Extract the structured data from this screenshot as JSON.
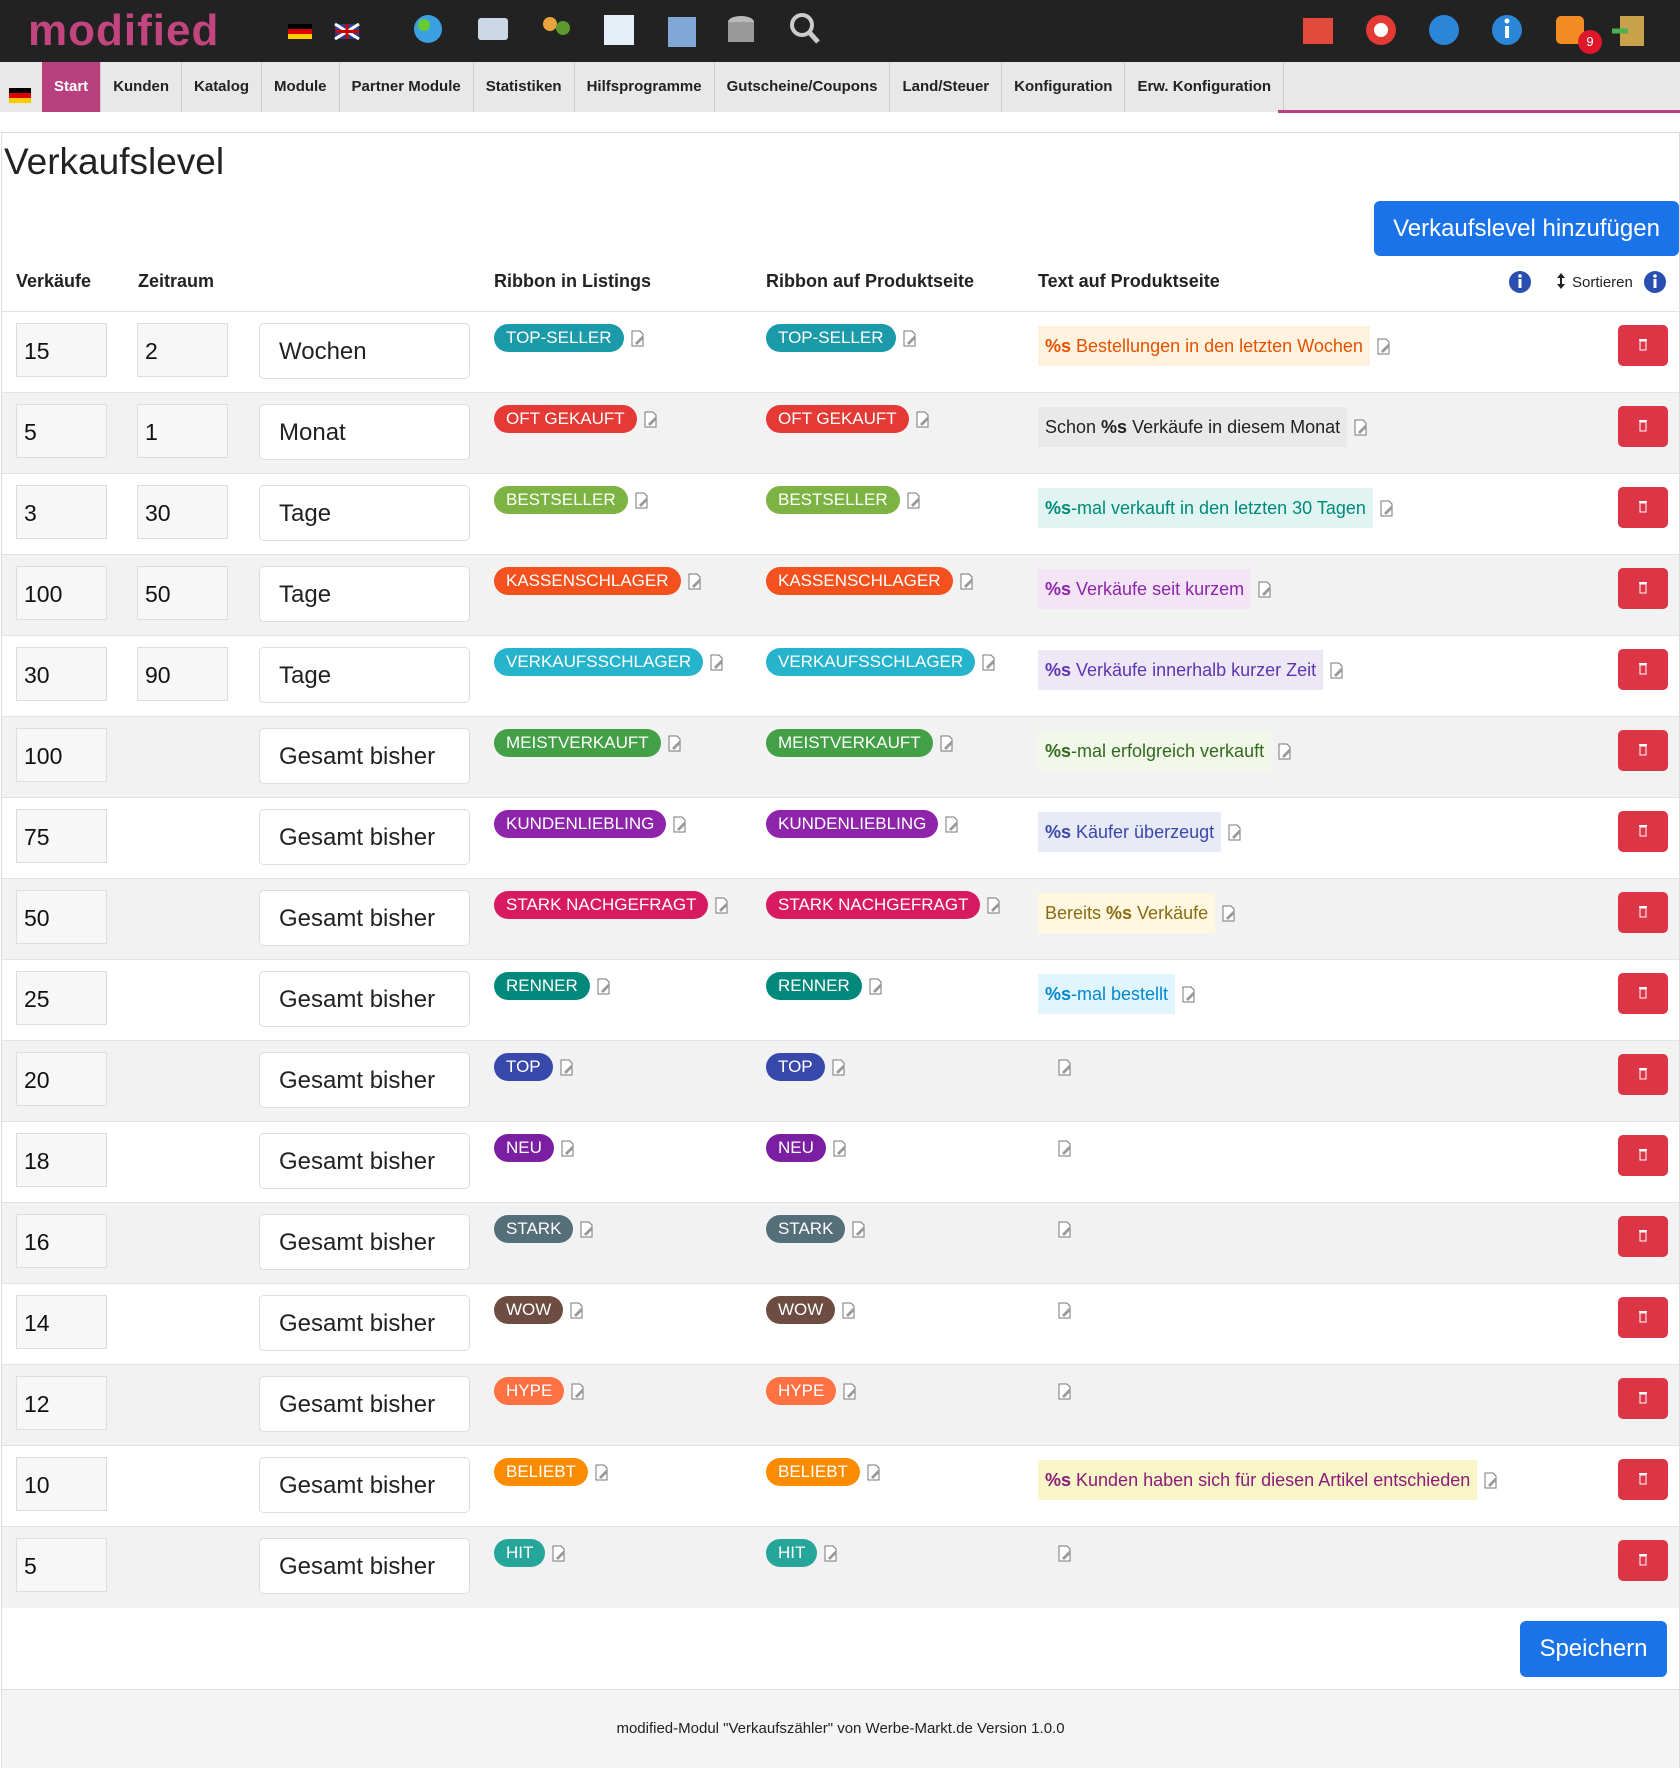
{
  "header": {
    "logo": "modified",
    "notification_count": 9
  },
  "nav": [
    "Start",
    "Kunden",
    "Katalog",
    "Module",
    "Partner Module",
    "Statistiken",
    "Hilfsprogramme",
    "Gutscheine/Coupons",
    "Land/Steuer",
    "Konfiguration",
    "Erw. Konfiguration"
  ],
  "page": {
    "title": "Verkaufslevel",
    "add_button": "Verkaufslevel hinzufügen",
    "save_button": "Speichern",
    "footer": "modified-Modul \"Verkaufszähler\" von Werbe-Markt.de Version 1.0.0"
  },
  "table": {
    "headers": {
      "sales": "Verkäufe",
      "period": "Zeitraum",
      "ribbon_listings": "Ribbon in Listings",
      "ribbon_product": "Ribbon auf Produktseite",
      "text": "Text auf Produktseite",
      "sort": "Sortieren"
    },
    "rows": [
      {
        "sales": 15,
        "period": 2,
        "unit": "Wochen",
        "ribbon": "TOP-SELLER",
        "ribbon_color": "#1b9aaa",
        "text": {
          "bold": "%s",
          "after": " Bestellungen in den letzten Wochen"
        },
        "text_color": "#e65100",
        "text_bg": "#fff3e0"
      },
      {
        "sales": 5,
        "period": 1,
        "unit": "Monat",
        "ribbon": "OFT GEKAUFT",
        "ribbon_color": "#e53935",
        "text": {
          "before": "Schon ",
          "bold": "%s",
          "after": " Verkäufe in diesem Monat"
        },
        "text_color": "#222222",
        "text_bg": "#e9e9e9"
      },
      {
        "sales": 3,
        "period": 30,
        "unit": "Tage",
        "ribbon": "BESTSELLER",
        "ribbon_color": "#7cb342",
        "text": {
          "bold": "%s",
          "after": "-mal verkauft in den letzten 30 Tagen"
        },
        "text_color": "#00897b",
        "text_bg": "#e0f5f1"
      },
      {
        "sales": 100,
        "period": 50,
        "unit": "Tage",
        "ribbon": "KASSENSCHLAGER",
        "ribbon_color": "#f4511e",
        "text": {
          "bold": "%s",
          "after": " Verkäufe seit kurzem"
        },
        "text_color": "#8e24aa",
        "text_bg": "#f3e5f5"
      },
      {
        "sales": 30,
        "period": 90,
        "unit": "Tage",
        "ribbon": "VERKAUFSSCHLAGER",
        "ribbon_color": "#26b3cc",
        "text": {
          "bold": "%s",
          "after": " Verkäufe innerhalb kurzer Zeit"
        },
        "text_color": "#5e35b1",
        "text_bg": "#ede7f6"
      },
      {
        "sales": 100,
        "unit": "Gesamt bisher",
        "ribbon": "MEISTVERKAUFT",
        "ribbon_color": "#43a047",
        "text": {
          "bold": "%s",
          "after": "-mal erfolgreich verkauft"
        },
        "text_color": "#33691e",
        "text_bg": "#f1f8e9"
      },
      {
        "sales": 75,
        "unit": "Gesamt bisher",
        "ribbon": "KUNDENLIEBLING",
        "ribbon_color": "#8e24aa",
        "text": {
          "bold": "%s",
          "after": " Käufer überzeugt"
        },
        "text_color": "#3949ab",
        "text_bg": "#e8eaf6"
      },
      {
        "sales": 50,
        "unit": "Gesamt bisher",
        "ribbon": "STARK NACHGEFRAGT",
        "ribbon_color": "#d81b60",
        "text": {
          "before": "Bereits ",
          "bold": "%s",
          "after": " Verkäufe"
        },
        "text_color": "#8a6a12",
        "text_bg": "#fff8e1"
      },
      {
        "sales": 25,
        "unit": "Gesamt bisher",
        "ribbon": "RENNER",
        "ribbon_color": "#00897b",
        "text": {
          "bold": "%s",
          "after": "-mal bestellt"
        },
        "text_color": "#0288d1",
        "text_bg": "#e1f5fe"
      },
      {
        "sales": 20,
        "unit": "Gesamt bisher",
        "ribbon": "TOP",
        "ribbon_color": "#3949ab"
      },
      {
        "sales": 18,
        "unit": "Gesamt bisher",
        "ribbon": "NEU",
        "ribbon_color": "#7b1fa2"
      },
      {
        "sales": 16,
        "unit": "Gesamt bisher",
        "ribbon": "STARK",
        "ribbon_color": "#546e7a"
      },
      {
        "sales": 14,
        "unit": "Gesamt bisher",
        "ribbon": "WOW",
        "ribbon_color": "#6d4c41"
      },
      {
        "sales": 12,
        "unit": "Gesamt bisher",
        "ribbon": "HYPE",
        "ribbon_color": "#ff7043"
      },
      {
        "sales": 10,
        "unit": "Gesamt bisher",
        "ribbon": "BELIEBT",
        "ribbon_color": "#fb8c00",
        "text": {
          "bold": "%s",
          "after": " Kunden haben sich für diesen Artikel entschieden"
        },
        "text_color": "#8e1a7a",
        "text_bg": "#f8f6c6"
      },
      {
        "sales": 5,
        "unit": "Gesamt bisher",
        "ribbon": "HIT",
        "ribbon_color": "#26a69a"
      }
    ]
  }
}
